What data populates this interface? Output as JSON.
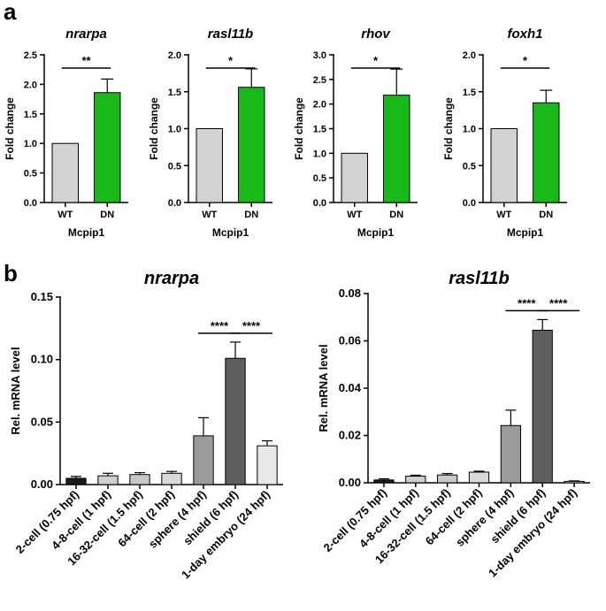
{
  "figure": {
    "panel_a_label": "a",
    "panel_b_label": "b"
  },
  "colors": {
    "wt": "#d3d3d3",
    "dn": "#19b919",
    "outline": "#000000",
    "stage_fills": [
      "#1a1a1a",
      "#cfcfcf",
      "#c8c8c8",
      "#dadada",
      "#9b9b9b",
      "#5f5f5f",
      "#e8e8e8"
    ]
  },
  "chart_data": [
    {
      "type": "bar",
      "panel": "a",
      "title": "nrarpa",
      "categories": [
        "WT",
        "DN"
      ],
      "values": [
        1.0,
        1.86
      ],
      "errors": [
        0,
        0.23
      ],
      "xlabel": "Mcpip1",
      "ylabel": "Fold change",
      "ylim": [
        0,
        2.5
      ],
      "yticks": [
        "0.0",
        "0.5",
        "1.0",
        "1.5",
        "2.0",
        "2.5"
      ],
      "significance": [
        {
          "from": 0,
          "to": 1,
          "label": "**"
        }
      ]
    },
    {
      "type": "bar",
      "panel": "a",
      "title": "rasl11b",
      "categories": [
        "WT",
        "DN"
      ],
      "values": [
        1.0,
        1.56
      ],
      "errors": [
        0,
        0.25
      ],
      "xlabel": "Mcpip1",
      "ylabel": "Fold change",
      "ylim": [
        0,
        2.0
      ],
      "yticks": [
        "0.0",
        "0.5",
        "1.0",
        "1.5",
        "2.0"
      ],
      "significance": [
        {
          "from": 0,
          "to": 1,
          "label": "*"
        }
      ]
    },
    {
      "type": "bar",
      "panel": "a",
      "title": "rhov",
      "categories": [
        "WT",
        "DN"
      ],
      "values": [
        1.0,
        2.18
      ],
      "errors": [
        0,
        0.53
      ],
      "xlabel": "Mcpip1",
      "ylabel": "Fold change",
      "ylim": [
        0,
        3.0
      ],
      "yticks": [
        "0.0",
        "0.5",
        "1.0",
        "1.5",
        "2.0",
        "2.5",
        "3.0"
      ],
      "significance": [
        {
          "from": 0,
          "to": 1,
          "label": "*"
        }
      ]
    },
    {
      "type": "bar",
      "panel": "a",
      "title": "foxh1",
      "categories": [
        "WT",
        "DN"
      ],
      "values": [
        1.0,
        1.35
      ],
      "errors": [
        0,
        0.17
      ],
      "xlabel": "Mcpip1",
      "ylabel": "Fold change",
      "ylim": [
        0,
        2.0
      ],
      "yticks": [
        "0.0",
        "0.5",
        "1.0",
        "1.5",
        "2.0"
      ],
      "significance": [
        {
          "from": 0,
          "to": 1,
          "label": "*"
        }
      ]
    },
    {
      "type": "bar",
      "panel": "b",
      "title": "nrarpa",
      "categories": [
        "2-cell (0.75 hpf)",
        "4-8-cell (1 hpf)",
        "16-32-cell (1.5 hpf)",
        "64-cell (2 hpf)",
        "sphere (4 hpf)",
        "shield (6 hpf)",
        "1-day embryo (24 hpf)"
      ],
      "values": [
        0.005,
        0.007,
        0.008,
        0.009,
        0.039,
        0.101,
        0.031
      ],
      "errors": [
        0.0015,
        0.002,
        0.0015,
        0.0015,
        0.0145,
        0.013,
        0.004
      ],
      "xlabel": "",
      "ylabel": "Rel. mRNA level",
      "ylim": [
        0,
        0.15
      ],
      "yticks": [
        "0.00",
        "0.05",
        "0.10",
        "0.15"
      ],
      "significance": [
        {
          "from": 4,
          "to": 5,
          "label": "****"
        },
        {
          "from": 5,
          "to": 6,
          "label": "****"
        }
      ]
    },
    {
      "type": "bar",
      "panel": "b",
      "title": "rasl11b",
      "categories": [
        "2-cell (0.75 hpf)",
        "4-8-cell (1 hpf)",
        "16-32-cell (1.5 hpf)",
        "64-cell (2 hpf)",
        "sphere (4 hpf)",
        "shield (6 hpf)",
        "1-day embryo (24 hpf)"
      ],
      "values": [
        0.0012,
        0.0028,
        0.0033,
        0.0045,
        0.0242,
        0.0645,
        0.0006
      ],
      "errors": [
        0.0005,
        0.0004,
        0.0006,
        0.0004,
        0.0065,
        0.0045,
        0.0002
      ],
      "xlabel": "",
      "ylabel": "Rel. mRNA level",
      "ylim": [
        0,
        0.08
      ],
      "yticks": [
        "0.00",
        "0.02",
        "0.04",
        "0.06",
        "0.08"
      ],
      "significance": [
        {
          "from": 4,
          "to": 5,
          "label": "****"
        },
        {
          "from": 5,
          "to": 6,
          "label": "****"
        }
      ]
    }
  ]
}
